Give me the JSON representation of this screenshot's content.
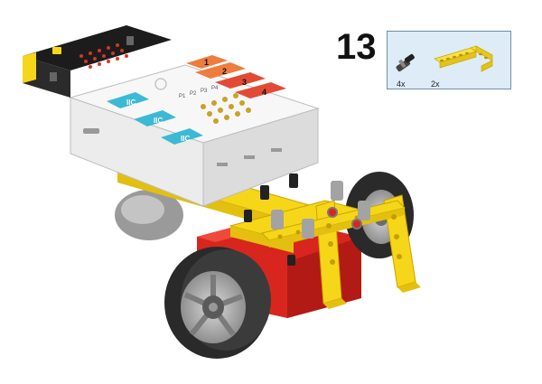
{
  "step": {
    "number": "13"
  },
  "parts_callout": {
    "items": [
      {
        "icon": "axle-pin-icon",
        "quantity": "4x"
      },
      {
        "icon": "l-beam-icon",
        "quantity": "2x"
      }
    ]
  },
  "model": {
    "port_labels": [
      "1",
      "2",
      "3",
      "4"
    ],
    "connector_labels": [
      "IIC",
      "IIC",
      "IIC"
    ],
    "pin_labels": [
      "P1",
      "P2",
      "P3",
      "P4"
    ]
  },
  "colors": {
    "background": "#ffffff",
    "callout_fill": "#ddecf6",
    "callout_border": "#6f8fa8",
    "beam_yellow": "#f6d619",
    "motor_red": "#d8261e",
    "port_orange": "#ee7c3d",
    "port_red": "#e34a35",
    "connector_cyan": "#3cb9d4",
    "microbit_black": "#1c1c1c",
    "led_red": "#d6332a",
    "wheel_black": "#2a2a2a",
    "rim_grey": "#a9a9a9"
  }
}
